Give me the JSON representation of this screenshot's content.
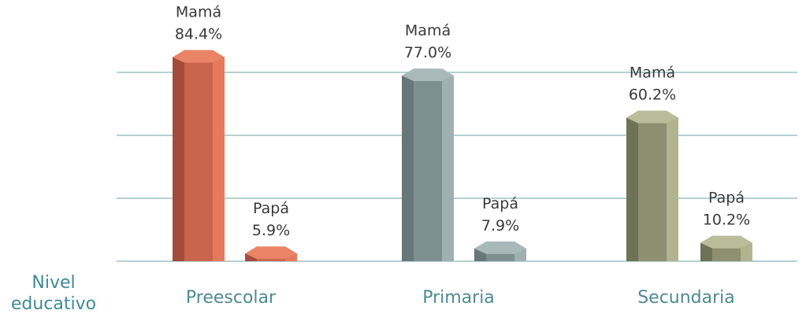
{
  "chart_data": {
    "type": "bar",
    "xlabel": "Nivel educativo",
    "categories": [
      "Preescolar",
      "Primaria",
      "Secundaria"
    ],
    "series": [
      {
        "name": "Mamá",
        "values": [
          84.4,
          77.0,
          60.2
        ]
      },
      {
        "name": "Papá",
        "values": [
          5.9,
          7.9,
          10.2
        ]
      }
    ],
    "value_labels": [
      [
        "84.4%",
        "77.0%",
        "60.2%"
      ],
      [
        "5.9%",
        "7.9%",
        "10.2%"
      ]
    ],
    "grid": true,
    "legend": "none",
    "colors": {
      "Preescolar": {
        "front": "#c8654c",
        "side": "#a44c3a",
        "right": "#e57a5a",
        "top": "#ea8466"
      },
      "Primaria": {
        "front": "#7e8f91",
        "side": "#677678",
        "right": "#9eb0b0",
        "top": "#a9b9b9"
      },
      "Secundaria": {
        "front": "#8c9070",
        "side": "#6f7355",
        "right": "#b0b48e",
        "top": "#b9bd99"
      },
      "grid": "#9ec2c2",
      "category_text": "#4f8a93",
      "axis_title_text": "#3f8a95"
    }
  }
}
